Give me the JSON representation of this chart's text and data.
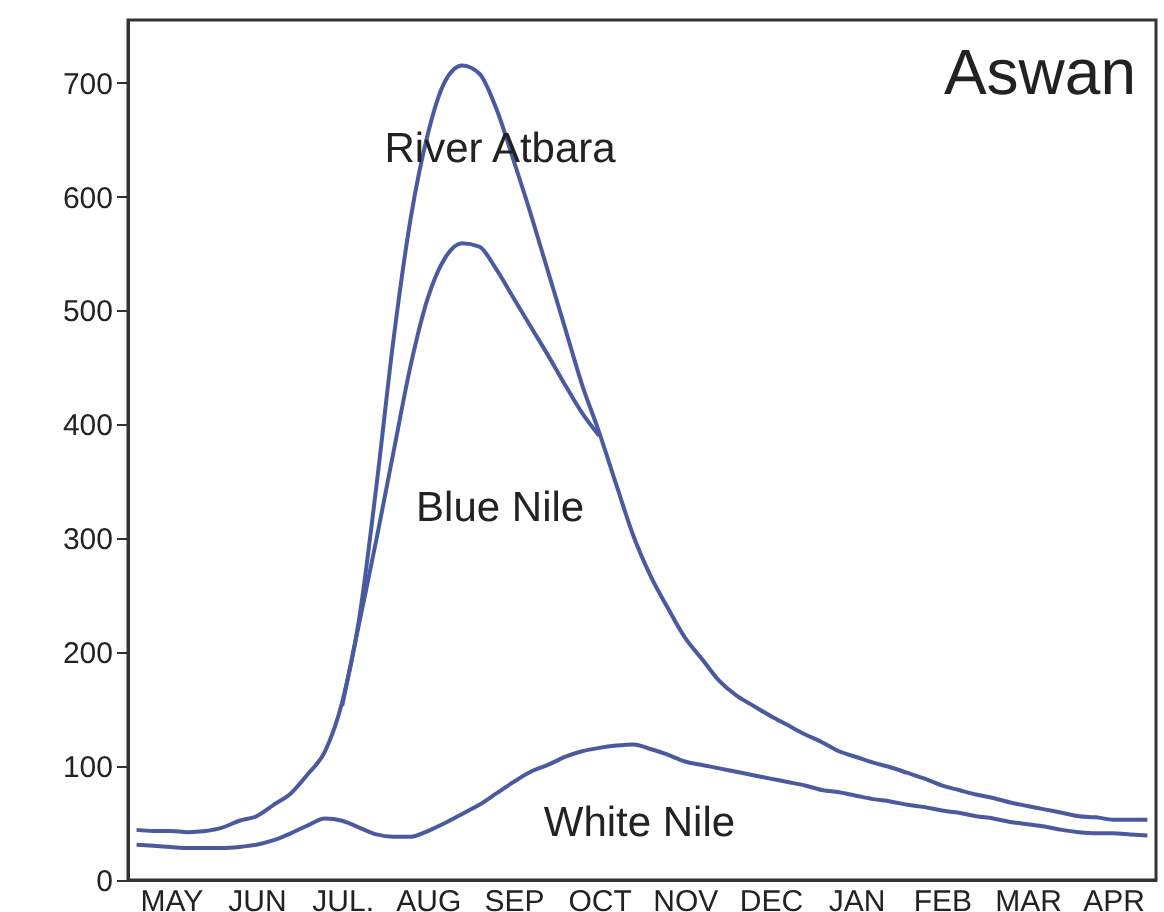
{
  "chart_data": {
    "type": "line",
    "title": "Aswan",
    "categories": [
      null,
      null,
      "MAY",
      null,
      null,
      null,
      null,
      "JUN",
      null,
      null,
      null,
      null,
      "JUL.",
      null,
      null,
      null,
      null,
      "AUG",
      null,
      null,
      null,
      null,
      "SEP",
      null,
      null,
      null,
      null,
      "OCT",
      null,
      null,
      null,
      null,
      "NOV",
      null,
      null,
      null,
      null,
      "DEC",
      null,
      null,
      null,
      null,
      "JAN",
      null,
      null,
      null,
      null,
      "FEB",
      null,
      null,
      null,
      null,
      "MAR",
      null,
      null,
      null,
      null,
      "APR",
      null,
      null
    ],
    "ylim": [
      0,
      755
    ],
    "yticks": [
      0,
      100,
      200,
      300,
      400,
      500,
      600,
      700
    ],
    "grid": false,
    "marker": "none",
    "line_style": "solid",
    "series": [
      {
        "name": "River Atbara",
        "color": "#4a5a9e",
        "values": [
          44,
          43,
          43,
          42,
          43,
          46,
          52,
          56,
          66,
          76,
          93,
          113,
          156,
          230,
          346,
          475,
          581,
          655,
          701,
          715,
          708,
          677,
          632,
          585,
          535,
          485,
          435,
          393,
          347,
          302,
          267,
          239,
          213,
          194,
          175,
          162,
          153,
          144,
          136,
          128,
          121,
          113,
          108,
          103,
          99,
          94,
          89,
          83,
          79,
          75,
          72,
          68,
          65,
          62,
          59,
          56,
          55,
          53,
          53,
          53
        ]
      },
      {
        "name": "Blue Nile",
        "color": "#4a5a9e",
        "values": [
          null,
          null,
          null,
          null,
          null,
          null,
          null,
          null,
          null,
          null,
          null,
          null,
          153,
          226,
          299,
          376,
          452,
          511,
          546,
          559,
          556,
          536,
          511,
          486,
          461,
          435,
          410,
          390,
          null,
          null,
          null,
          null,
          null,
          null,
          null,
          null,
          null,
          null,
          null,
          null,
          null,
          null,
          null,
          null,
          null,
          null,
          null,
          null,
          null,
          null,
          null,
          null,
          null,
          null,
          null,
          null,
          null,
          null,
          null,
          null
        ]
      },
      {
        "name": "White Nile",
        "color": "#4a5a9e",
        "values": [
          31,
          30,
          29,
          28,
          28,
          28,
          29,
          31,
          35,
          41,
          48,
          54,
          52,
          46,
          40,
          38,
          38,
          43,
          50,
          58,
          66,
          76,
          86,
          95,
          101,
          108,
          113,
          116,
          118,
          119,
          115,
          110,
          104,
          101,
          98,
          95,
          92,
          89,
          86,
          83,
          79,
          77,
          74,
          71,
          69,
          66,
          64,
          61,
          59,
          56,
          54,
          51,
          49,
          47,
          44,
          42,
          41,
          41,
          40,
          39
        ]
      }
    ]
  }
}
